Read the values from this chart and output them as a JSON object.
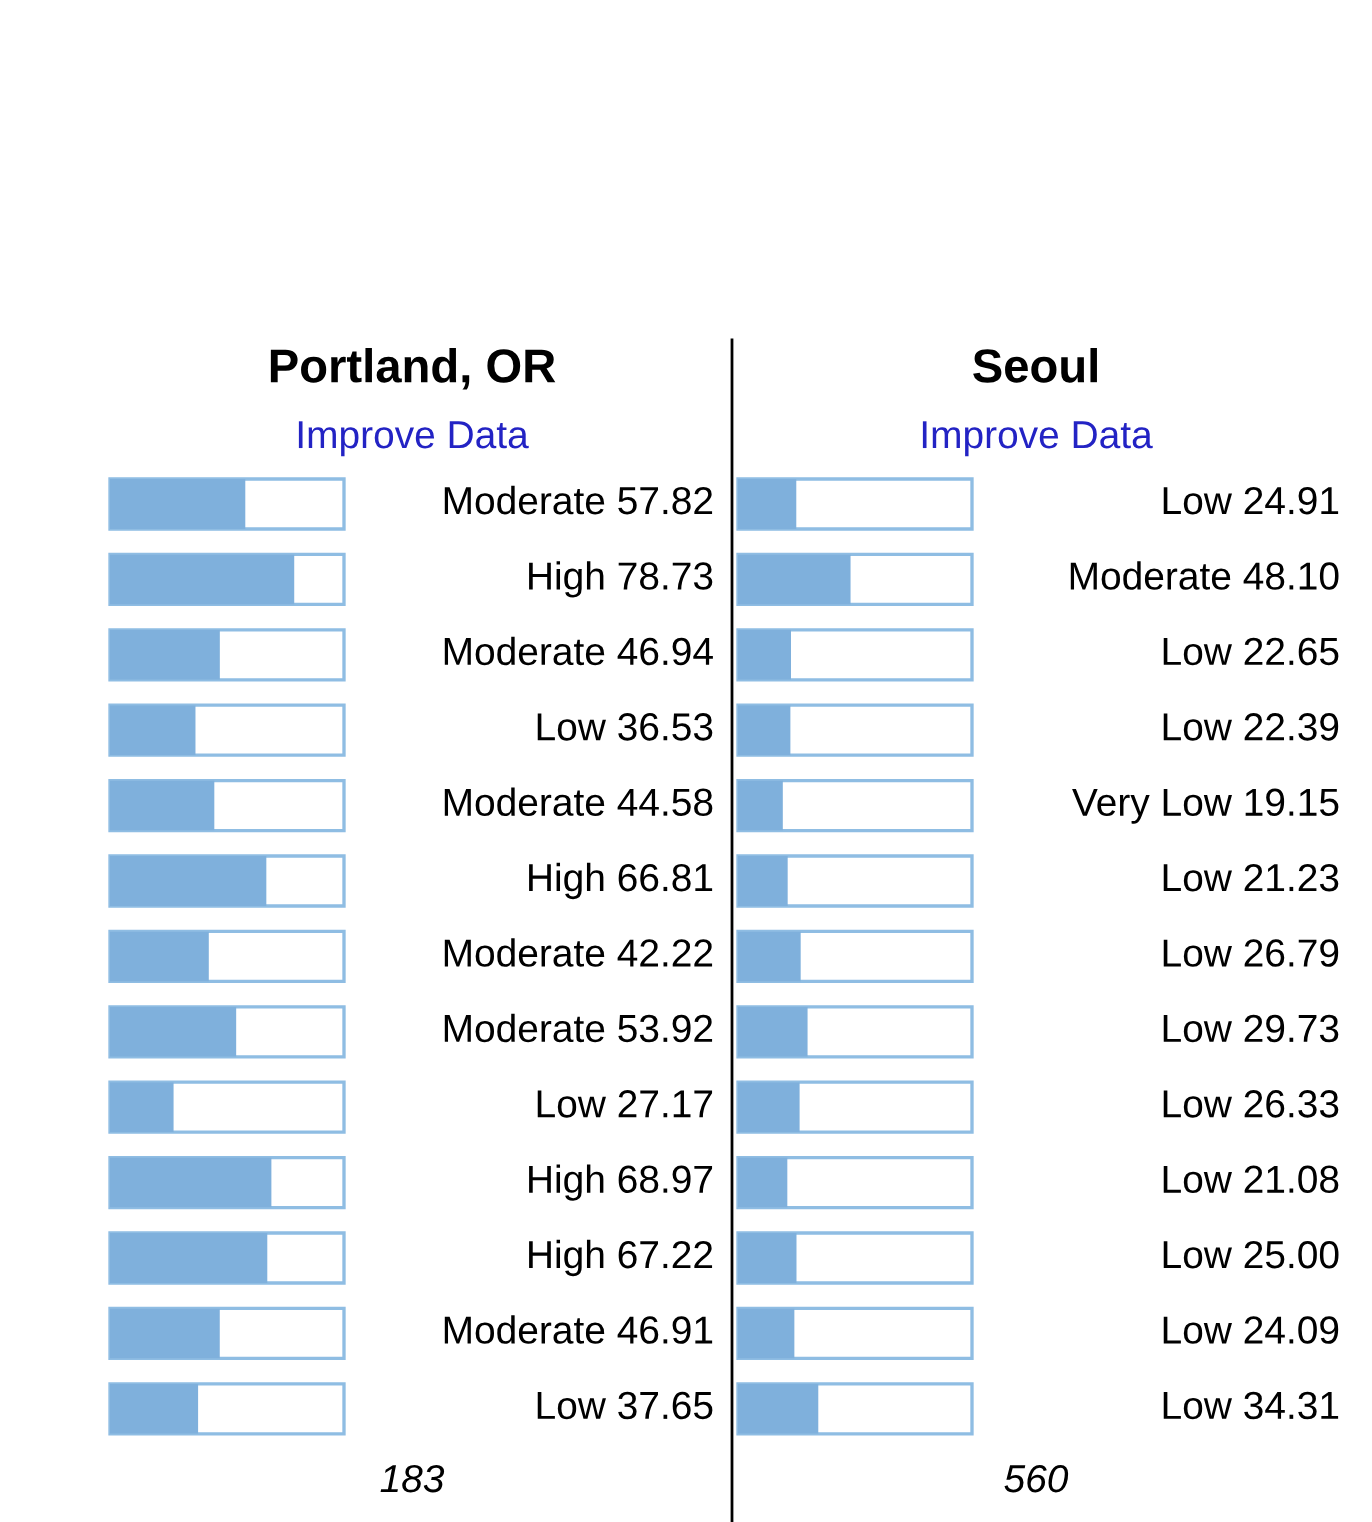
{
  "chart_data": [
    {
      "type": "bar",
      "orientation": "horizontal",
      "title": "Portland, OR",
      "subtitle": "Improve Data",
      "categories": [
        null,
        null,
        null,
        null,
        null,
        null,
        null,
        null,
        null,
        null,
        null,
        null,
        null
      ],
      "xlim": [
        0,
        100
      ],
      "tick_labels": false,
      "color": "#7fb0dc",
      "values": [
        57.82,
        78.73,
        46.94,
        36.53,
        44.58,
        66.81,
        42.22,
        53.92,
        27.17,
        68.97,
        67.22,
        46.91,
        37.65
      ],
      "value_labels": [
        "Moderate 57.82",
        "High 78.73",
        "Moderate 46.94",
        "Low 36.53",
        "Moderate 44.58",
        "High 66.81",
        "Moderate 42.22",
        "Moderate 53.92",
        "Low 27.17",
        "High 68.97",
        "High 67.22",
        "Moderate 46.91",
        "Low 37.65"
      ],
      "annotations": [
        "183"
      ]
    },
    {
      "type": "bar",
      "orientation": "horizontal",
      "title": "Seoul",
      "subtitle": "Improve Data",
      "categories": [
        null,
        null,
        null,
        null,
        null,
        null,
        null,
        null,
        null,
        null,
        null,
        null,
        null
      ],
      "xlim": [
        0,
        100
      ],
      "tick_labels": false,
      "color": "#7fb0dc",
      "values": [
        24.91,
        48.1,
        22.65,
        22.39,
        19.15,
        21.23,
        26.79,
        29.73,
        26.33,
        21.08,
        25.0,
        24.09,
        34.31
      ],
      "value_labels": [
        "Low 24.91",
        "Moderate 48.10",
        "Low 22.65",
        "Low 22.39",
        "Very Low 19.15",
        "Low 21.23",
        "Low 26.79",
        "Low 29.73",
        "Low 26.33",
        "Low 21.08",
        "Low 25.00",
        "Low 24.09",
        "Low 34.31"
      ],
      "annotations": [
        "560"
      ]
    }
  ]
}
